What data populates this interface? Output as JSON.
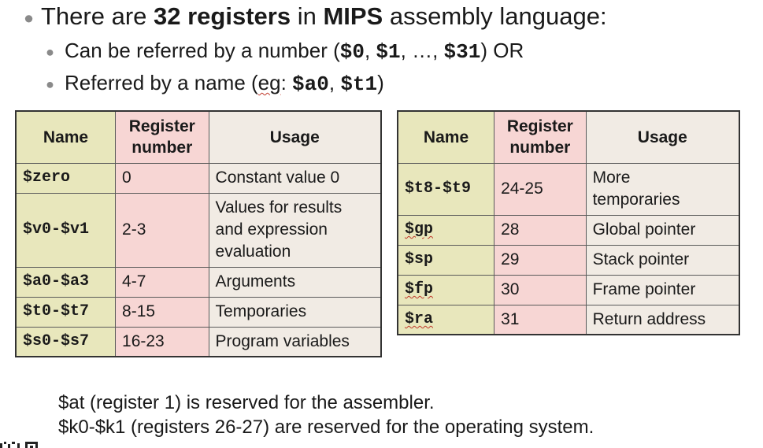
{
  "intro": {
    "line1": {
      "pre": "There are ",
      "count": "32 registers",
      "mid": " in ",
      "lang": "MIPS",
      "post": " assembly language:"
    },
    "line2": {
      "pre": "Can be referred by a number (",
      "r0": "$0",
      "sep1": ", ",
      "r1": "$1",
      "sep2": ", …, ",
      "r31": "$31",
      "post": ") OR"
    },
    "line3": {
      "pre": "Referred by a name (",
      "eg": "eg",
      "colon": ": ",
      "a0": "$a0",
      "sep": ", ",
      "t1": "$t1",
      "post": ")"
    }
  },
  "table_headers": {
    "name": "Name",
    "number_l1": "Register",
    "number_l2": "number",
    "usage": "Usage"
  },
  "left_table": [
    {
      "name": "$zero",
      "number": "0",
      "usage": [
        "Constant value 0"
      ]
    },
    {
      "name": "$v0-$v1",
      "number": "2-3",
      "usage": [
        "Values for results",
        "and expression",
        "evaluation"
      ]
    },
    {
      "name": "$a0-$a3",
      "number": "4-7",
      "usage": [
        "Arguments"
      ]
    },
    {
      "name": "$t0-$t7",
      "number": "8-15",
      "usage": [
        "Temporaries"
      ]
    },
    {
      "name": "$s0-$s7",
      "number": "16-23",
      "usage": [
        "Program variables"
      ]
    }
  ],
  "right_table": [
    {
      "name": "$t8-$t9",
      "number": "24-25",
      "usage": [
        "More",
        "temporaries"
      ]
    },
    {
      "name": "$gp",
      "number": "28",
      "usage": [
        "Global pointer"
      ]
    },
    {
      "name": "$sp",
      "number": "29",
      "usage": [
        "Stack pointer"
      ]
    },
    {
      "name": "$fp",
      "number": "30",
      "usage": [
        "Frame pointer"
      ]
    },
    {
      "name": "$ra",
      "number": "31",
      "usage": [
        "Return address"
      ]
    }
  ],
  "notes": {
    "at": "$at (register 1) is reserved for the assembler.",
    "k": "$k0-$k1 (registers 26-27) are reserved for the operating system."
  },
  "colors": {
    "name_col": "#e8e7bc",
    "number_col": "#f7d6d4",
    "usage_col": "#f1ebe4"
  }
}
